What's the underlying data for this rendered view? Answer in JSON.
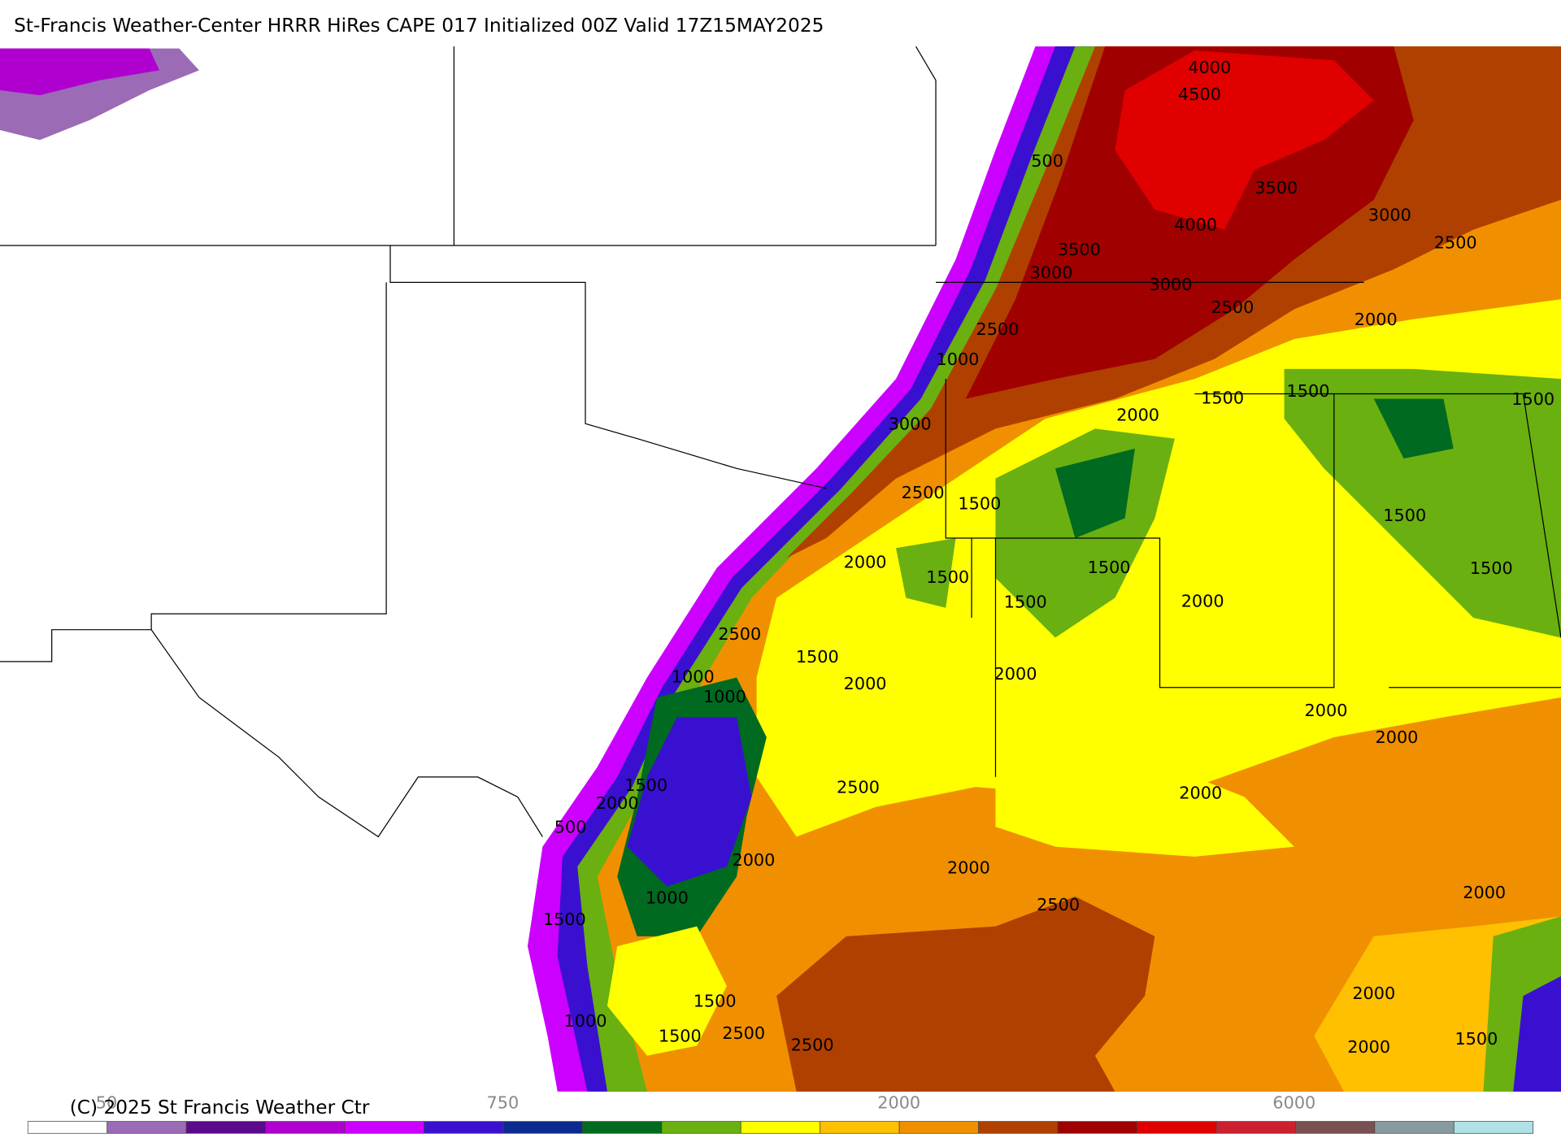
{
  "header": {
    "title": "St-Francis Weather-Center HRRR HiRes CAPE  017 Initialized  00Z Valid 17Z15MAY2025"
  },
  "map": {
    "contour_labels": [
      "4000",
      "4500",
      "500",
      "3500",
      "3000",
      "4000",
      "3500",
      "2500",
      "3000",
      "3000",
      "2500",
      "2500",
      "2000",
      "1000",
      "1500",
      "1500",
      "1500",
      "2000",
      "3000",
      "2500",
      "1500",
      "1500",
      "2000",
      "1500",
      "1500",
      "1500",
      "1500",
      "2000",
      "2500",
      "1500",
      "1000",
      "2000",
      "2000",
      "1000",
      "2000",
      "2000",
      "1500",
      "2500",
      "2000",
      "2000",
      "500",
      "2000",
      "2000",
      "1000",
      "2500",
      "2000",
      "1500",
      "2000",
      "1500",
      "1000",
      "2500",
      "1500",
      "2500",
      "2000",
      "1500"
    ]
  },
  "colorbar": {
    "labels": [
      "50",
      "750",
      "2000",
      "6000"
    ]
  },
  "footer": {
    "copyright": "(C) 2025 St Francis Weather Ctr"
  }
}
